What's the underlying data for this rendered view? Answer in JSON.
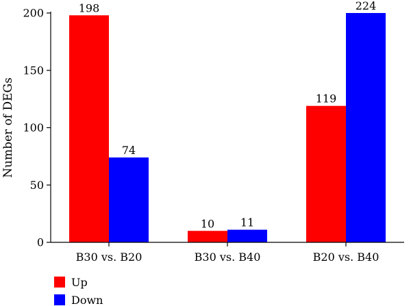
{
  "chart_data": {
    "type": "bar",
    "categories": [
      "B30 vs. B20",
      "B30 vs. B40",
      "B20 vs. B40"
    ],
    "series": [
      {
        "name": "Up",
        "color": "#ff0000",
        "values": [
          198,
          10,
          119
        ],
        "labels": [
          "198",
          "10",
          "119"
        ]
      },
      {
        "name": "Down",
        "color": "#0000ff",
        "values": [
          74,
          11,
          224
        ],
        "labels": [
          "74",
          "11",
          "224"
        ]
      }
    ],
    "ylabel": "Number of DEGs",
    "ylim": [
      0,
      200
    ],
    "yticks": [
      0,
      50,
      100,
      150,
      200
    ],
    "clip_at_ylim": true,
    "grid": false,
    "legend_position": "bottom-left"
  }
}
